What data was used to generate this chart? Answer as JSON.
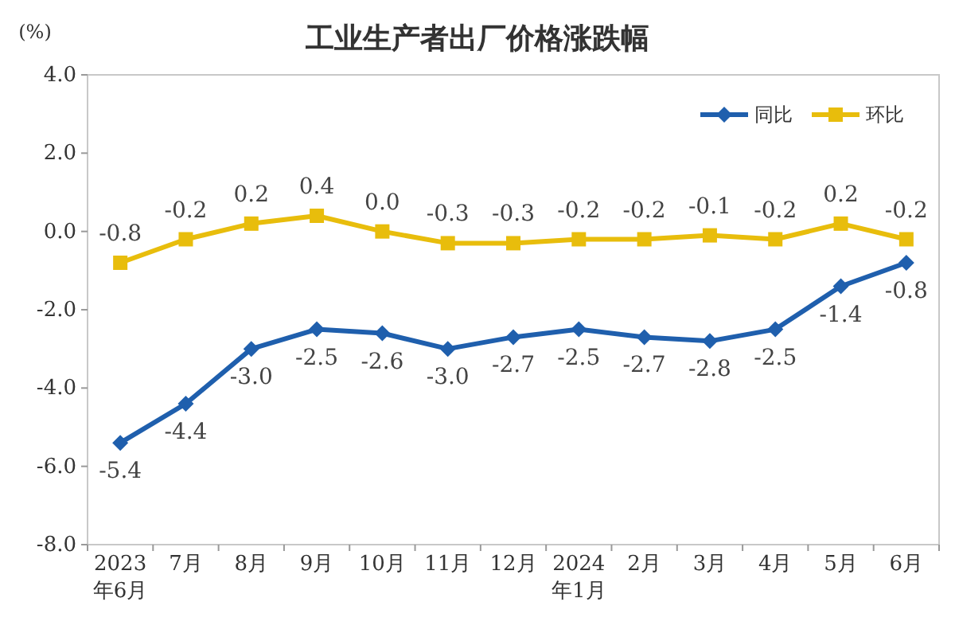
{
  "chart_data": {
    "type": "line",
    "title": "工业生产者出厂价格涨跌幅",
    "ylabel": "(%)",
    "categories": [
      "2023年6月",
      "7月",
      "8月",
      "9月",
      "10月",
      "11月",
      "12月",
      "2024年1月",
      "2月",
      "3月",
      "4月",
      "5月",
      "6月"
    ],
    "series": [
      {
        "name": "同比",
        "color": "#1f5fad",
        "marker": "diamond",
        "values": [
          -5.4,
          -4.4,
          -3.0,
          -2.5,
          -2.6,
          -3.0,
          -2.7,
          -2.5,
          -2.7,
          -2.8,
          -2.5,
          -1.4,
          -0.8
        ],
        "value_labels": [
          "-5.4",
          "-4.4",
          "-3.0",
          "-2.5",
          "-2.6",
          "-3.0",
          "-2.7",
          "-2.5",
          "-2.7",
          "-2.8",
          "-2.5",
          "-1.4",
          "-0.8"
        ]
      },
      {
        "name": "环比",
        "color": "#e8bd0c",
        "marker": "square",
        "values": [
          -0.8,
          -0.2,
          0.2,
          0.4,
          0.0,
          -0.3,
          -0.3,
          -0.2,
          -0.2,
          -0.1,
          -0.2,
          0.2,
          -0.2
        ],
        "value_labels": [
          "-0.8",
          "-0.2",
          "0.2",
          "0.4",
          "0.0",
          "-0.3",
          "-0.3",
          "-0.2",
          "-0.2",
          "-0.1",
          "-0.2",
          "0.2",
          "-0.2"
        ]
      }
    ],
    "ylim": [
      -8,
      4
    ],
    "yticks": [
      {
        "value": -8,
        "label": "-8.0"
      },
      {
        "value": -6,
        "label": "-6.0"
      },
      {
        "value": -4,
        "label": "-4.0"
      },
      {
        "value": -2,
        "label": "-2.0"
      },
      {
        "value": 0,
        "label": "0.0"
      },
      {
        "value": 2,
        "label": "2.0"
      },
      {
        "value": 4,
        "label": "4.0"
      }
    ],
    "legend": "top right",
    "grid": false
  }
}
